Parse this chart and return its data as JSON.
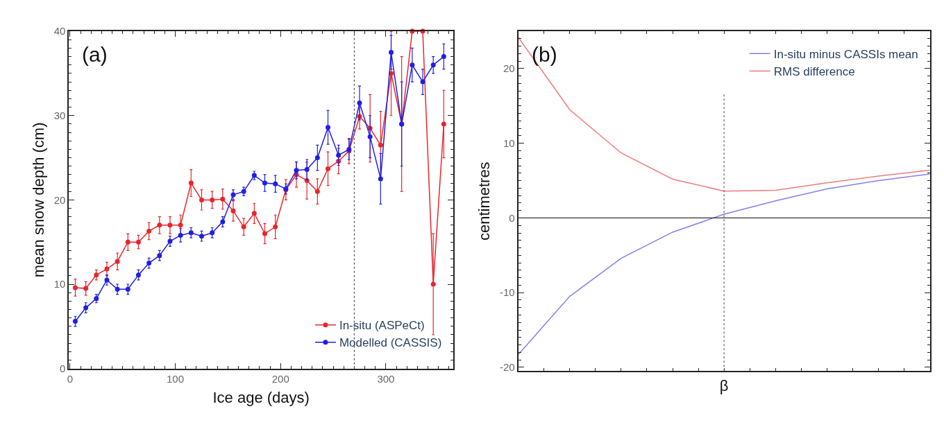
{
  "chart_data": [
    {
      "type": "line",
      "annotations": [
        "(a)"
      ],
      "xlabel": "Ice age (days)",
      "ylabel": "mean snow depth (cm)",
      "x": [
        5,
        15,
        25,
        35,
        45,
        55,
        65,
        75,
        85,
        95,
        105,
        115,
        125,
        135,
        145,
        155,
        165,
        175,
        185,
        195,
        205,
        215,
        225,
        235,
        245,
        255,
        265,
        275,
        285,
        295,
        305,
        315,
        325,
        335,
        345,
        355
      ],
      "series": [
        {
          "name": "In-situ (ASPeCt)",
          "color": "#e8262c",
          "values": [
            9.6,
            9.5,
            11.1,
            11.8,
            12.7,
            15.0,
            15.0,
            16.3,
            17.0,
            17.0,
            17.0,
            22.0,
            20.0,
            20.0,
            20.1,
            18.7,
            16.8,
            18.4,
            16.0,
            16.8,
            21.2,
            23.0,
            22.3,
            21.0,
            23.7,
            24.6,
            25.8,
            29.9,
            28.5,
            26.5,
            35.0,
            29.0,
            40.0,
            40.0,
            10.0,
            29.0
          ],
          "errors": [
            1,
            0.8,
            0.6,
            0.8,
            1,
            1,
            0.8,
            1,
            1,
            1,
            1.2,
            1.6,
            1.2,
            1,
            1.2,
            1.2,
            1,
            1.2,
            1.2,
            1.4,
            1.2,
            1.5,
            2.2,
            1.5,
            2,
            1.5,
            1.5,
            1.5,
            4,
            4,
            5,
            8,
            null,
            null,
            6,
            4
          ]
        },
        {
          "name": "Modelled (CASSIS)",
          "color": "#1f1fe6",
          "values": [
            5.6,
            7.2,
            8.3,
            10.5,
            9.4,
            9.4,
            11.1,
            12.5,
            13.4,
            15.1,
            15.8,
            16.1,
            15.7,
            16.1,
            17.4,
            20.6,
            21.0,
            22.9,
            22.0,
            21.9,
            21.3,
            23.5,
            23.6,
            25.0,
            28.6,
            25.3,
            26.0,
            31.5,
            27.5,
            22.5,
            37.5,
            29.0,
            36.0,
            34.0,
            36.0,
            37.0
          ],
          "errors": [
            0.6,
            0.6,
            0.5,
            0.6,
            0.6,
            0.6,
            0.6,
            0.6,
            0.6,
            0.6,
            0.8,
            0.6,
            0.6,
            0.6,
            0.6,
            0.6,
            0.5,
            0.5,
            1,
            1,
            0.6,
            1,
            1.2,
            1.5,
            2,
            1.2,
            1.2,
            2,
            2.5,
            3,
            2,
            5,
            2,
            1.5,
            1,
            1.5
          ]
        }
      ],
      "xlim": [
        -1,
        364
      ],
      "xticks": [
        0,
        100,
        200,
        300
      ],
      "ylim": [
        0,
        40
      ],
      "yticks": [
        0,
        10,
        20,
        30,
        40
      ],
      "marker": "circle",
      "legend": "bottom right",
      "ref_lines": [
        {
          "axis": "x",
          "value": 270,
          "line_style": "dotted",
          "color": "#555555"
        }
      ]
    },
    {
      "type": "line",
      "annotations": [
        "(b)"
      ],
      "xlabel": "β",
      "ylabel": "centimetres",
      "categories": [
        null,
        null,
        null,
        null,
        null,
        null,
        null,
        null,
        null
      ],
      "series": [
        {
          "name": "In-situ minus CASSIs mean",
          "color": "#8080f0",
          "values": [
            -18.3,
            -10.5,
            -5.4,
            -1.9,
            0.5,
            2.3,
            3.9,
            5.0,
            5.9
          ]
        },
        {
          "name": "RMS difference",
          "color": "#f07a7a",
          "values": [
            24.2,
            14.5,
            8.7,
            5.2,
            3.6,
            3.7,
            4.7,
            5.6,
            6.4
          ]
        }
      ],
      "ylim": [
        -20.5,
        25
      ],
      "yticks": [
        -20,
        -10,
        0,
        10,
        20
      ],
      "tick_labels": "y",
      "legend": "top right",
      "ref_lines": [
        {
          "axis": "y",
          "value": 0,
          "line_style": "solid",
          "color": "#333333"
        }
      ]
    }
  ]
}
